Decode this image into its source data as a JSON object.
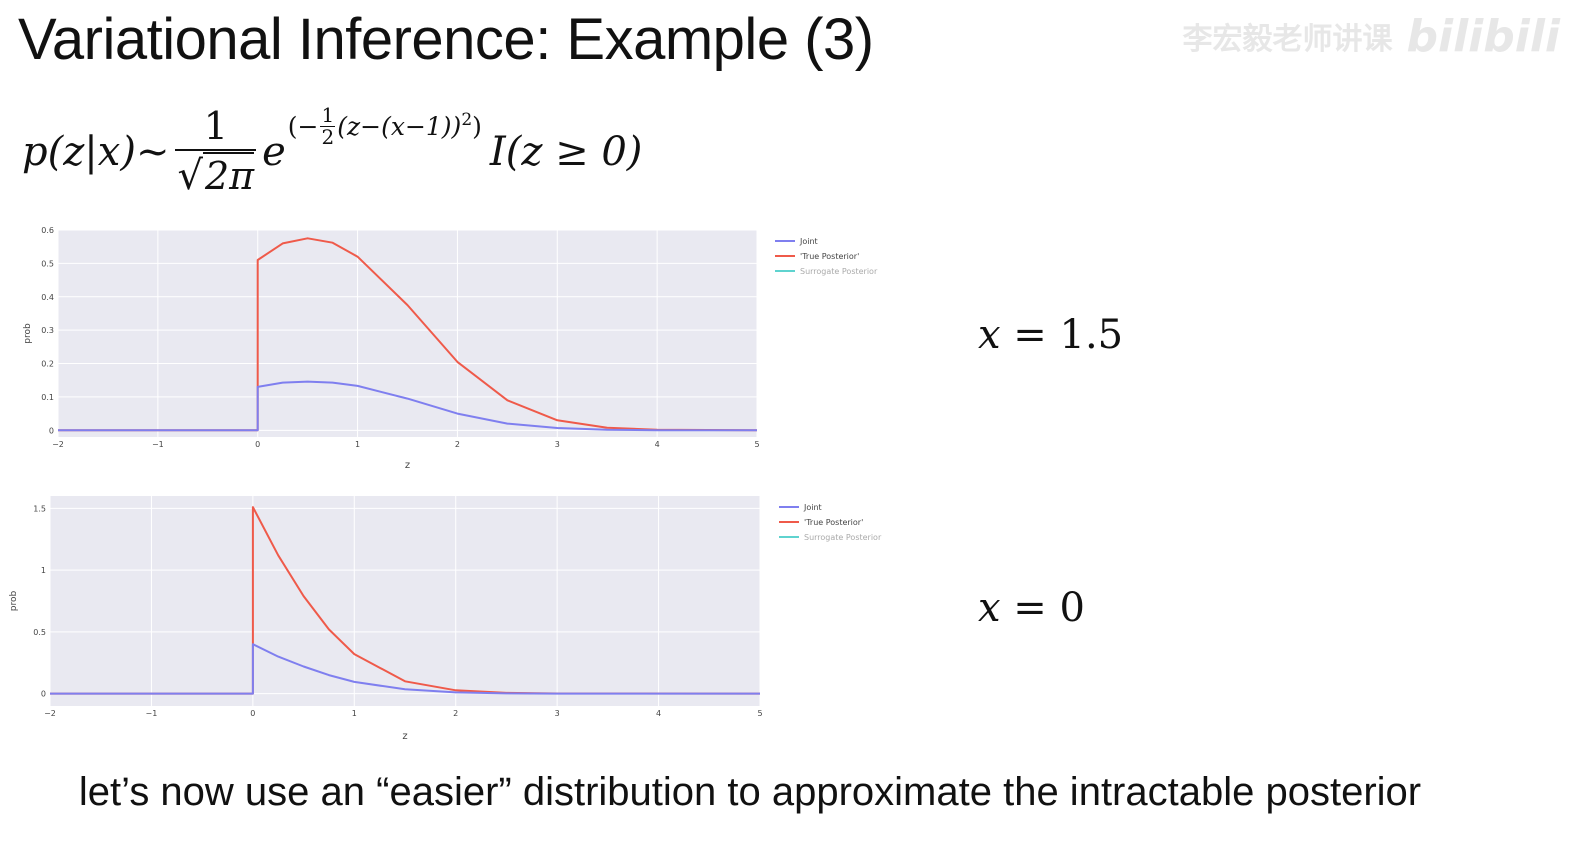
{
  "slide": {
    "title": "Variational Inference: Example (3)",
    "watermark_text": "李宏毅老师讲课",
    "watermark_logo": "bilibili",
    "formula": {
      "lhs": "p(z|x)",
      "sim": "~",
      "frac_num": "1",
      "frac_den_sqrt": "√",
      "frac_den_body": "2π",
      "exp_base": "e",
      "exp_open": "(−",
      "exp_frac_num": "1",
      "exp_frac_den": "2",
      "exp_body": "(z−(x−1))",
      "exp_sq": "2",
      "exp_close": ")",
      "indicator": "I",
      "indicator_arg": "(z ≥ 0)"
    },
    "caption": "let’s now use an “easier” distribution to approximate the intractable posterior"
  },
  "colors": {
    "joint": "#7f7fef",
    "true_posterior": "#ef5a4a",
    "surrogate": "#5fd3cf",
    "plot_bg": "#e9e9f1",
    "grid": "#ffffff"
  },
  "chart_data": [
    {
      "type": "line",
      "xlabel": "z",
      "ylabel": "prob",
      "xlim": [
        -2,
        5
      ],
      "ylim": [
        -0.02,
        0.6
      ],
      "xticks": [
        -2,
        -1,
        0,
        1,
        2,
        3,
        4,
        5
      ],
      "xtick_labels": [
        "−2",
        "−1",
        "0",
        "1",
        "2",
        "3",
        "4",
        "5"
      ],
      "yticks": [
        0,
        0.1,
        0.2,
        0.3,
        0.4,
        0.5,
        0.6
      ],
      "ytick_labels": [
        "0",
        "0.1",
        "0.2",
        "0.3",
        "0.4",
        "0.5",
        "0.6"
      ],
      "grid": true,
      "legend": "right",
      "annotation_prefix": "x = ",
      "annotation_value": "1.5",
      "series": [
        {
          "name": "Joint",
          "color_key": "joint",
          "x": [
            -2,
            0,
            0,
            0.25,
            0.5,
            0.75,
            1,
            1.5,
            2,
            2.5,
            3,
            3.5,
            4,
            5
          ],
          "y": [
            0,
            0,
            0.13,
            0.143,
            0.146,
            0.143,
            0.133,
            0.095,
            0.05,
            0.02,
            0.007,
            0.002,
            0.0005,
            0
          ]
        },
        {
          "name": "'True Posterior'",
          "color_key": "true_posterior",
          "x": [
            -2,
            0,
            0,
            0.25,
            0.5,
            0.75,
            1,
            1.5,
            2,
            2.5,
            3,
            3.5,
            4,
            5
          ],
          "y": [
            0,
            0,
            0.51,
            0.56,
            0.575,
            0.562,
            0.52,
            0.375,
            0.205,
            0.09,
            0.03,
            0.008,
            0.002,
            0
          ]
        },
        {
          "name": "Surrogate Posterior",
          "color_key": "surrogate",
          "x": [],
          "y": []
        }
      ]
    },
    {
      "type": "line",
      "xlabel": "z",
      "ylabel": "prob",
      "xlim": [
        -2,
        5
      ],
      "ylim": [
        -0.1,
        1.6
      ],
      "xticks": [
        -2,
        -1,
        0,
        1,
        2,
        3,
        4,
        5
      ],
      "xtick_labels": [
        "−2",
        "−1",
        "0",
        "1",
        "2",
        "3",
        "4",
        "5"
      ],
      "yticks": [
        0,
        0.5,
        1,
        1.5
      ],
      "ytick_labels": [
        "0",
        "0.5",
        "1",
        "1.5"
      ],
      "grid": true,
      "legend": "right",
      "annotation_prefix": "x = ",
      "annotation_value": "0",
      "series": [
        {
          "name": "Joint",
          "color_key": "joint",
          "x": [
            -2,
            0,
            0,
            0.25,
            0.5,
            0.75,
            1,
            1.5,
            2,
            2.5,
            3,
            5
          ],
          "y": [
            0,
            0,
            0.4,
            0.3,
            0.22,
            0.15,
            0.095,
            0.035,
            0.01,
            0.002,
            0.0004,
            0
          ]
        },
        {
          "name": "'True Posterior'",
          "color_key": "true_posterior",
          "x": [
            -2,
            0,
            0,
            0.25,
            0.5,
            0.75,
            1,
            1.5,
            2,
            2.5,
            3,
            5
          ],
          "y": [
            0,
            0,
            1.51,
            1.12,
            0.79,
            0.52,
            0.32,
            0.1,
            0.027,
            0.006,
            0.001,
            0
          ]
        },
        {
          "name": "Surrogate Posterior",
          "color_key": "surrogate",
          "x": [],
          "y": []
        }
      ]
    }
  ]
}
